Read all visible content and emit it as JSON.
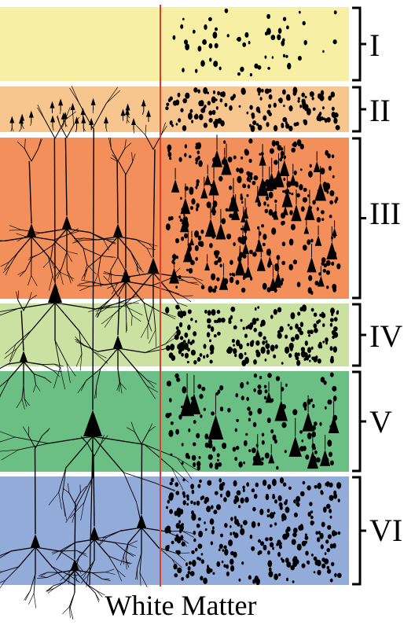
{
  "layers": [
    {
      "label": "I",
      "color": "#f7f0a4"
    },
    {
      "label": "II",
      "color": "#f7c68f"
    },
    {
      "label": "III",
      "color": "#f28f5a"
    },
    {
      "label": "IV",
      "color": "#cbe1a1"
    },
    {
      "label": "V",
      "color": "#6cbf84"
    },
    {
      "label": "VI",
      "color": "#93abd9"
    }
  ],
  "caption": "White Matter",
  "divider_color": "#e03a2a"
}
